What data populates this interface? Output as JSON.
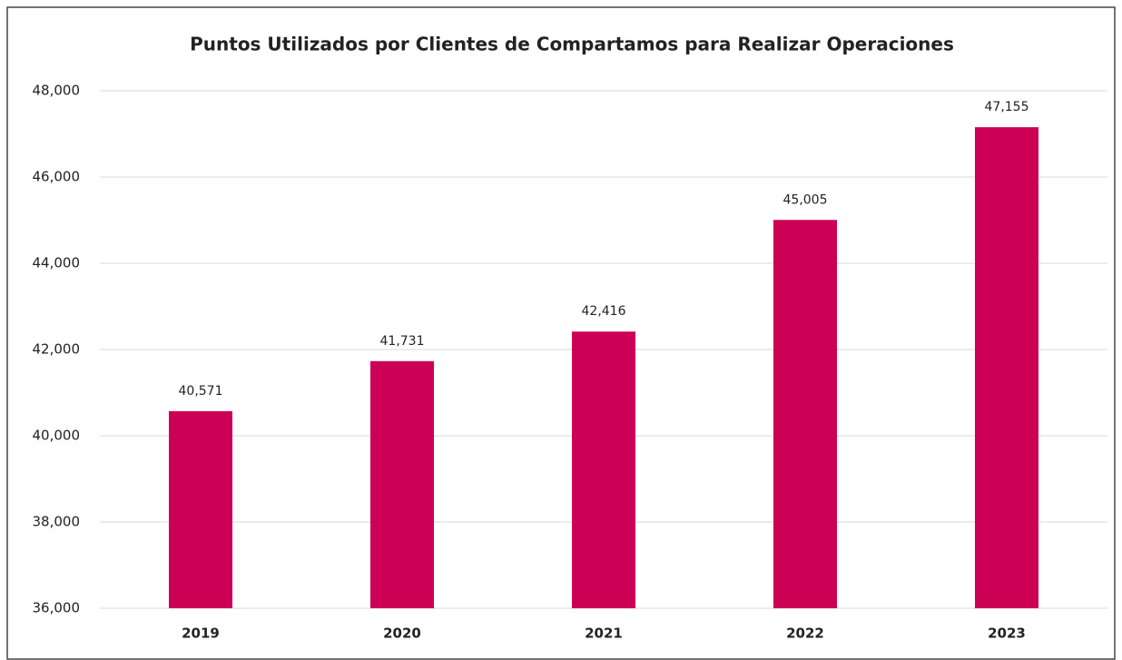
{
  "chart_data": {
    "type": "bar",
    "title": "Puntos Utilizados por Clientes de Compartamos para Realizar Operaciones",
    "categories": [
      "2019",
      "2020",
      "2021",
      "2022",
      "2023"
    ],
    "values": [
      40571,
      41731,
      42416,
      45005,
      47155
    ],
    "value_labels": [
      "40,571",
      "41,731",
      "42,416",
      "45,005",
      "47,155"
    ],
    "color": "#cc0055",
    "ylim": [
      36000,
      48000
    ],
    "yticks": [
      {
        "value": 36000,
        "label": "36,000"
      },
      {
        "value": 38000,
        "label": "38,000"
      },
      {
        "value": 40000,
        "label": "40,000"
      },
      {
        "value": 42000,
        "label": "42,000"
      },
      {
        "value": 44000,
        "label": "44,000"
      },
      {
        "value": 46000,
        "label": "46,000"
      },
      {
        "value": 48000,
        "label": "48,000"
      }
    ],
    "grid": true
  }
}
